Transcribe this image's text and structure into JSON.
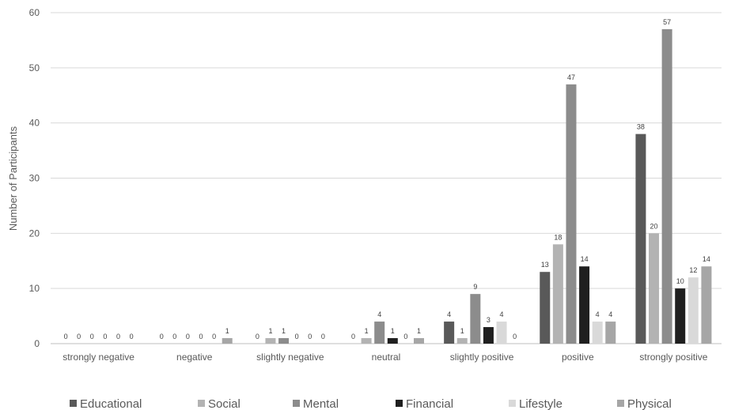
{
  "chart_data": {
    "type": "bar",
    "title": "",
    "xlabel": "",
    "ylabel": "Number of Participants",
    "ylim": [
      0,
      60
    ],
    "yticks": [
      0,
      10,
      20,
      30,
      40,
      50,
      60
    ],
    "grid": true,
    "legend_position": "bottom",
    "categories": [
      "strongly negative",
      "negative",
      "slightly negative",
      "neutral",
      "slightly positive",
      "positive",
      "strongly positive"
    ],
    "series": [
      {
        "name": "Educational",
        "color": "#595959",
        "values": [
          0,
          0,
          0,
          0,
          4,
          13,
          38
        ]
      },
      {
        "name": "Social",
        "color": "#b3b3b3",
        "values": [
          0,
          0,
          1,
          1,
          1,
          18,
          20
        ]
      },
      {
        "name": "Mental",
        "color": "#8c8c8c",
        "values": [
          0,
          0,
          1,
          4,
          9,
          47,
          57
        ]
      },
      {
        "name": "Financial",
        "color": "#1f1f1f",
        "values": [
          0,
          0,
          0,
          1,
          3,
          14,
          10
        ]
      },
      {
        "name": "Lifestyle",
        "color": "#d9d9d9",
        "values": [
          0,
          0,
          0,
          0,
          4,
          4,
          12
        ]
      },
      {
        "name": "Physical",
        "color": "#a6a6a6",
        "values": [
          0,
          1,
          0,
          1,
          0,
          4,
          14
        ]
      }
    ]
  }
}
